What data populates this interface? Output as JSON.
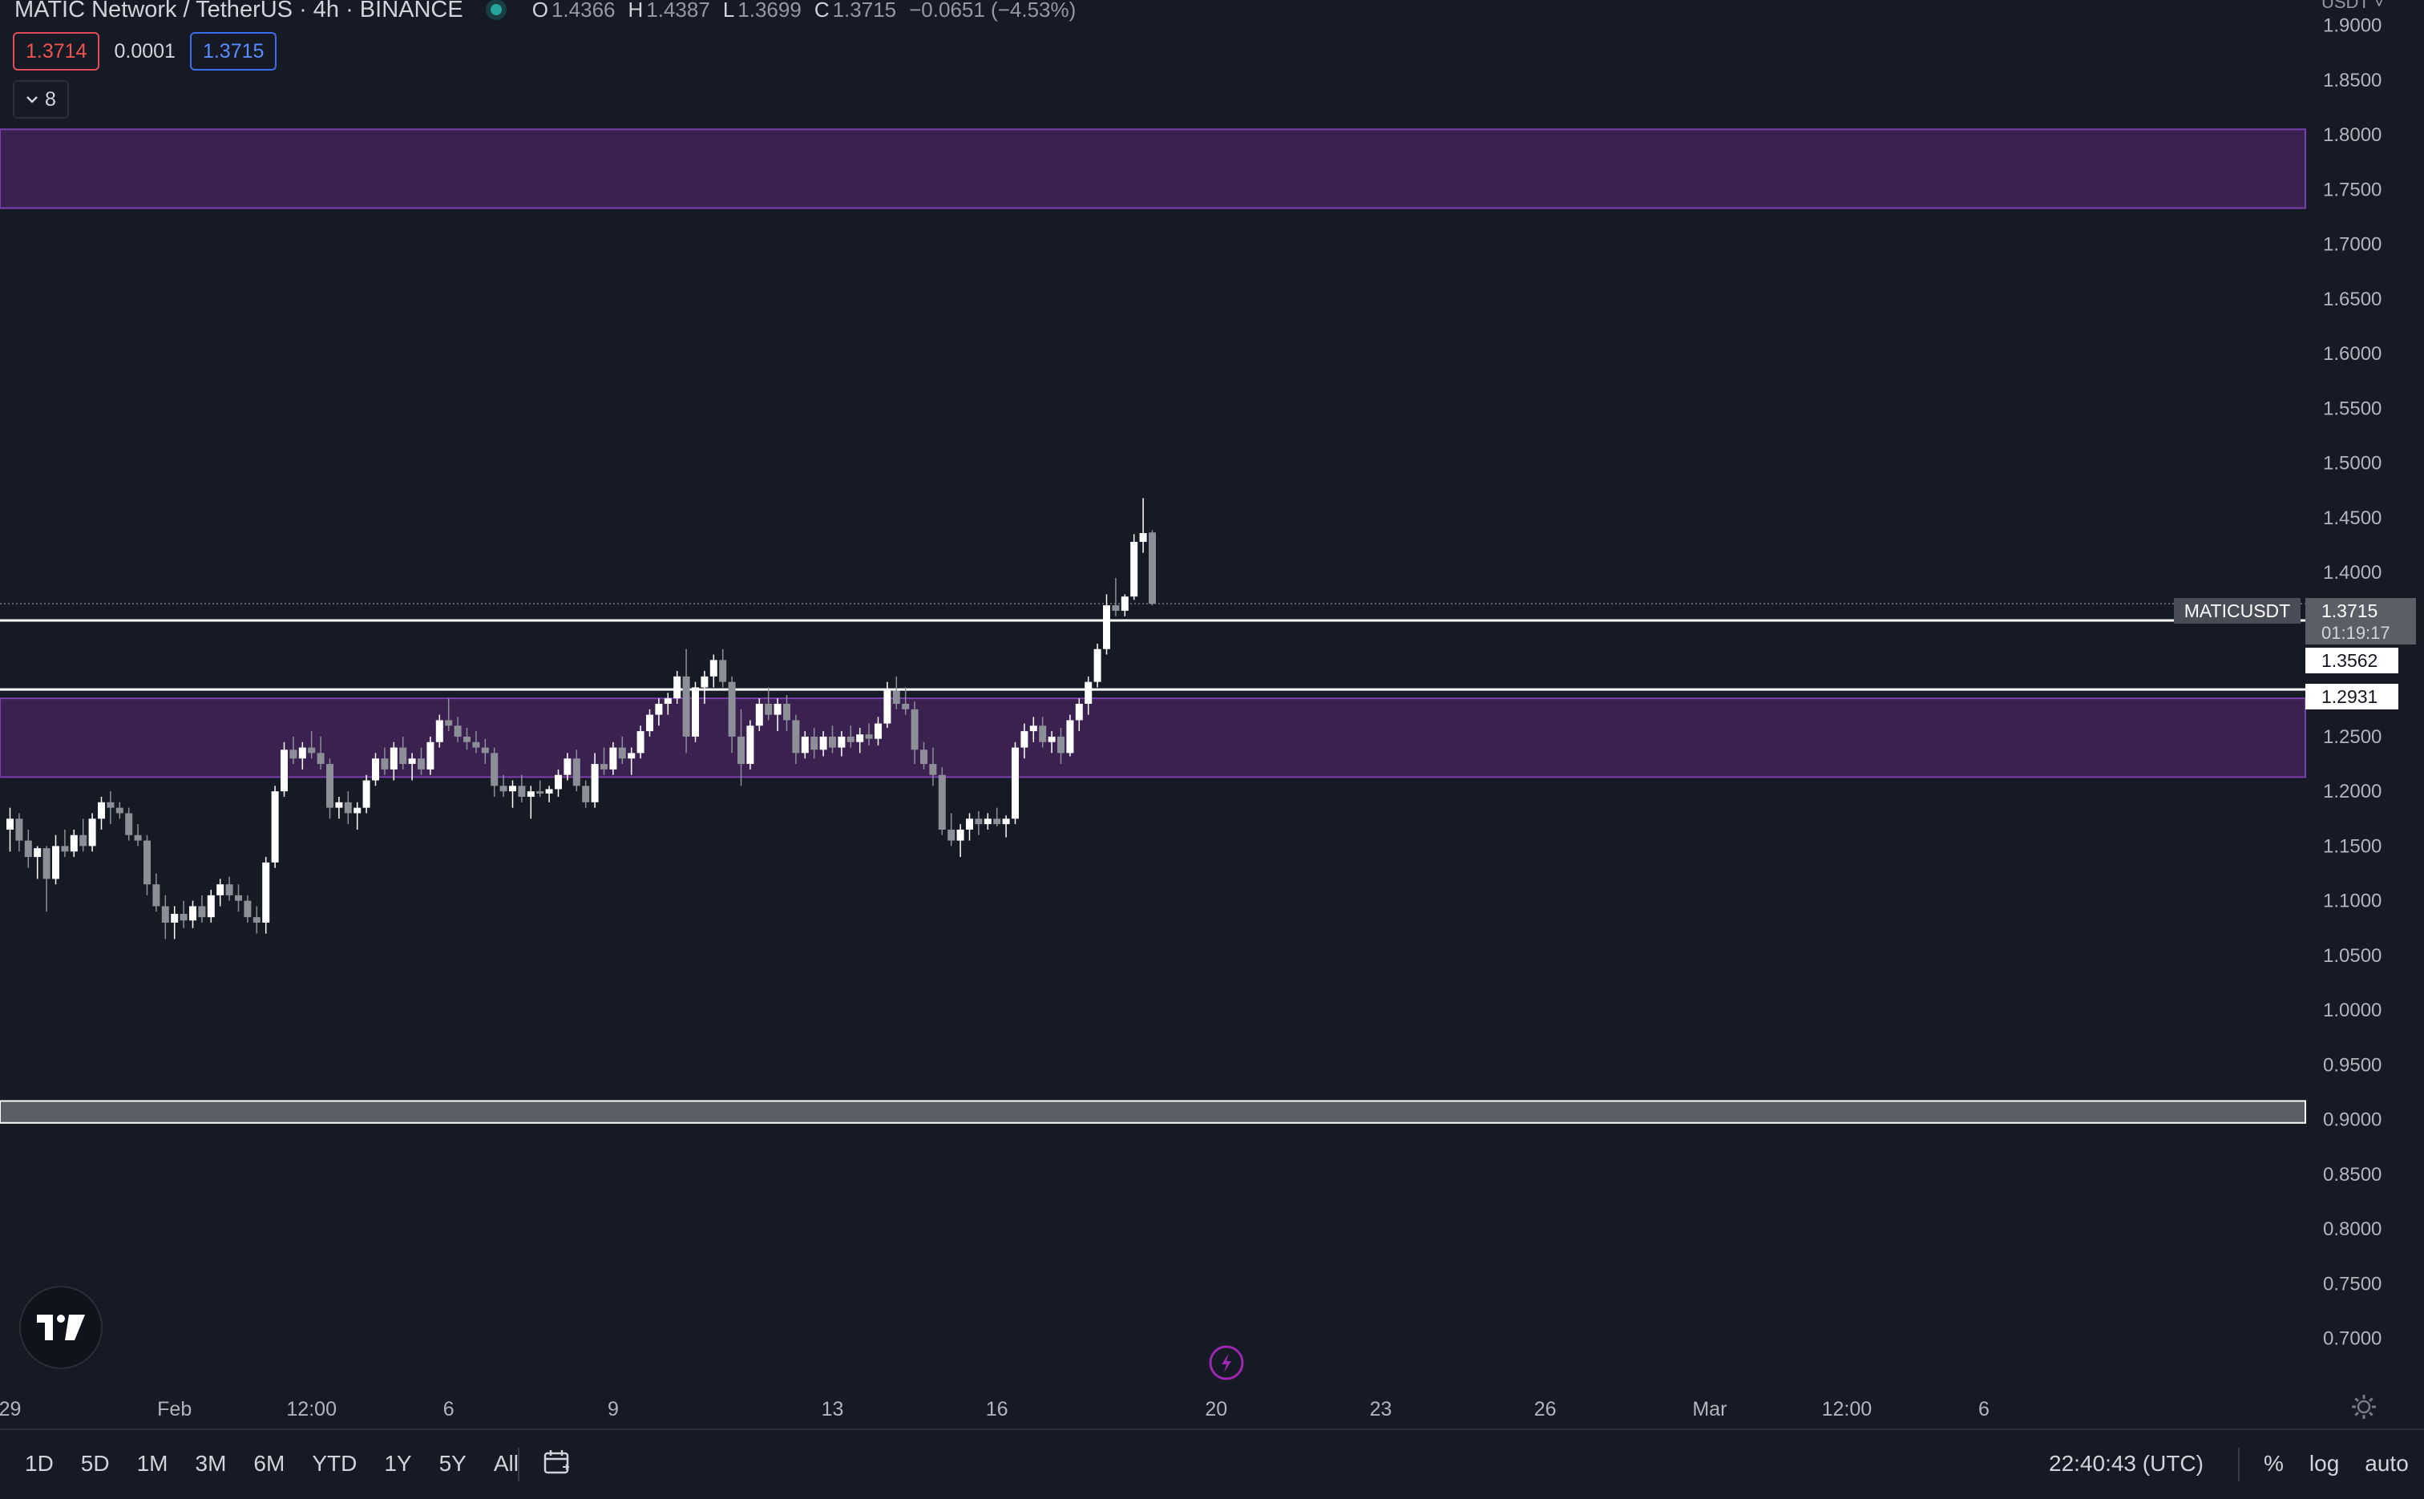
{
  "header": {
    "symbol_title": "MATIC Network / TetherUS · 4h · BINANCE",
    "o_label": "O",
    "o_value": "1.4366",
    "h_label": "H",
    "h_value": "1.4387",
    "l_label": "L",
    "l_value": "1.3699",
    "c_label": "C",
    "c_value": "1.3715",
    "change": "−0.0651 (−4.53%)"
  },
  "quote": {
    "sell": "1.3714",
    "spread": "0.0001",
    "buy": "1.3715"
  },
  "indicators_toggle": "8",
  "currency_label": "USDT",
  "price_labels": {
    "symbol_tag": "MATICUSDT",
    "last_price": "1.3715",
    "countdown": "01:19:17",
    "line_1": "1.3562",
    "line_2": "1.2931"
  },
  "bottom_bar": {
    "ranges": [
      "1D",
      "5D",
      "1M",
      "3M",
      "6M",
      "YTD",
      "1Y",
      "5Y",
      "All"
    ],
    "clock": "22:40:43 (UTC)",
    "percent": "%",
    "log": "log",
    "auto": "auto"
  },
  "colors": {
    "background": "#161a25",
    "candle_up": "#ffffff",
    "candle_down": "#8c8f98",
    "zone_fill": "#3a2150",
    "zone_border": "#7b3fb0",
    "grey_zone": "#5b5e66"
  },
  "chart_data": {
    "type": "candlestick",
    "symbol": "MATICUSDT",
    "timeframe": "4h",
    "y_ticks": [
      "1.9000",
      "1.8500",
      "1.8000",
      "1.7500",
      "1.7000",
      "1.6500",
      "1.6000",
      "1.5500",
      "1.5000",
      "1.4500",
      "1.4000",
      "1.2500",
      "1.2000",
      "1.1500",
      "1.1000",
      "1.0500",
      "1.0000",
      "0.9500",
      "0.9000",
      "0.8500",
      "0.8000",
      "0.7500",
      "0.7000"
    ],
    "ylim": [
      0.68,
      1.91
    ],
    "x_ticks": [
      {
        "label": "29",
        "bar": 0
      },
      {
        "label": "Feb",
        "bar": 18
      },
      {
        "label": "12:00",
        "bar": 33
      },
      {
        "label": "6",
        "bar": 48
      },
      {
        "label": "9",
        "bar": 66
      },
      {
        "label": "13",
        "bar": 90
      },
      {
        "label": "16",
        "bar": 108
      },
      {
        "label": "20",
        "bar": 132
      },
      {
        "label": "23",
        "bar": 150
      },
      {
        "label": "26",
        "bar": 168
      },
      {
        "label": "Mar",
        "bar": 186
      },
      {
        "label": "12:00",
        "bar": 201
      },
      {
        "label": "6",
        "bar": 216
      }
    ],
    "zones": [
      {
        "top": 1.805,
        "bottom": 1.733,
        "style": "purple"
      },
      {
        "top": 1.285,
        "bottom": 1.213,
        "style": "purple"
      },
      {
        "top": 0.917,
        "bottom": 0.897,
        "style": "grey"
      }
    ],
    "horizontal_lines": [
      1.3562,
      1.2931
    ],
    "last_price": 1.3715,
    "candles": [
      {
        "o": 1.165,
        "h": 1.185,
        "l": 1.145,
        "c": 1.175
      },
      {
        "o": 1.175,
        "h": 1.18,
        "l": 1.145,
        "c": 1.155
      },
      {
        "o": 1.155,
        "h": 1.165,
        "l": 1.13,
        "c": 1.14
      },
      {
        "o": 1.14,
        "h": 1.15,
        "l": 1.12,
        "c": 1.148
      },
      {
        "o": 1.148,
        "h": 1.15,
        "l": 1.09,
        "c": 1.12
      },
      {
        "o": 1.12,
        "h": 1.16,
        "l": 1.115,
        "c": 1.15
      },
      {
        "o": 1.15,
        "h": 1.165,
        "l": 1.14,
        "c": 1.145
      },
      {
        "o": 1.145,
        "h": 1.165,
        "l": 1.14,
        "c": 1.16
      },
      {
        "o": 1.16,
        "h": 1.175,
        "l": 1.145,
        "c": 1.15
      },
      {
        "o": 1.15,
        "h": 1.18,
        "l": 1.145,
        "c": 1.175
      },
      {
        "o": 1.175,
        "h": 1.195,
        "l": 1.165,
        "c": 1.19
      },
      {
        "o": 1.19,
        "h": 1.2,
        "l": 1.17,
        "c": 1.185
      },
      {
        "o": 1.185,
        "h": 1.19,
        "l": 1.175,
        "c": 1.18
      },
      {
        "o": 1.18,
        "h": 1.185,
        "l": 1.155,
        "c": 1.16
      },
      {
        "o": 1.16,
        "h": 1.17,
        "l": 1.15,
        "c": 1.155
      },
      {
        "o": 1.155,
        "h": 1.16,
        "l": 1.105,
        "c": 1.115
      },
      {
        "o": 1.115,
        "h": 1.125,
        "l": 1.09,
        "c": 1.095
      },
      {
        "o": 1.095,
        "h": 1.105,
        "l": 1.065,
        "c": 1.08
      },
      {
        "o": 1.08,
        "h": 1.095,
        "l": 1.065,
        "c": 1.088
      },
      {
        "o": 1.088,
        "h": 1.1,
        "l": 1.075,
        "c": 1.082
      },
      {
        "o": 1.082,
        "h": 1.1,
        "l": 1.075,
        "c": 1.095
      },
      {
        "o": 1.095,
        "h": 1.105,
        "l": 1.08,
        "c": 1.085
      },
      {
        "o": 1.085,
        "h": 1.11,
        "l": 1.08,
        "c": 1.105
      },
      {
        "o": 1.105,
        "h": 1.12,
        "l": 1.095,
        "c": 1.115
      },
      {
        "o": 1.115,
        "h": 1.122,
        "l": 1.1,
        "c": 1.105
      },
      {
        "o": 1.105,
        "h": 1.115,
        "l": 1.09,
        "c": 1.1
      },
      {
        "o": 1.1,
        "h": 1.105,
        "l": 1.08,
        "c": 1.085
      },
      {
        "o": 1.085,
        "h": 1.095,
        "l": 1.07,
        "c": 1.08
      },
      {
        "o": 1.08,
        "h": 1.14,
        "l": 1.07,
        "c": 1.135
      },
      {
        "o": 1.135,
        "h": 1.205,
        "l": 1.13,
        "c": 1.2
      },
      {
        "o": 1.2,
        "h": 1.245,
        "l": 1.195,
        "c": 1.238
      },
      {
        "o": 1.238,
        "h": 1.25,
        "l": 1.225,
        "c": 1.23
      },
      {
        "o": 1.23,
        "h": 1.245,
        "l": 1.22,
        "c": 1.24
      },
      {
        "o": 1.24,
        "h": 1.255,
        "l": 1.23,
        "c": 1.235
      },
      {
        "o": 1.235,
        "h": 1.25,
        "l": 1.22,
        "c": 1.225
      },
      {
        "o": 1.225,
        "h": 1.23,
        "l": 1.175,
        "c": 1.185
      },
      {
        "o": 1.185,
        "h": 1.195,
        "l": 1.175,
        "c": 1.19
      },
      {
        "o": 1.19,
        "h": 1.2,
        "l": 1.17,
        "c": 1.18
      },
      {
        "o": 1.18,
        "h": 1.19,
        "l": 1.165,
        "c": 1.185
      },
      {
        "o": 1.185,
        "h": 1.215,
        "l": 1.18,
        "c": 1.21
      },
      {
        "o": 1.21,
        "h": 1.235,
        "l": 1.205,
        "c": 1.23
      },
      {
        "o": 1.23,
        "h": 1.24,
        "l": 1.215,
        "c": 1.22
      },
      {
        "o": 1.22,
        "h": 1.245,
        "l": 1.21,
        "c": 1.24
      },
      {
        "o": 1.24,
        "h": 1.25,
        "l": 1.22,
        "c": 1.225
      },
      {
        "o": 1.225,
        "h": 1.235,
        "l": 1.21,
        "c": 1.23
      },
      {
        "o": 1.23,
        "h": 1.24,
        "l": 1.215,
        "c": 1.22
      },
      {
        "o": 1.22,
        "h": 1.25,
        "l": 1.215,
        "c": 1.245
      },
      {
        "o": 1.245,
        "h": 1.27,
        "l": 1.24,
        "c": 1.265
      },
      {
        "o": 1.265,
        "h": 1.285,
        "l": 1.255,
        "c": 1.26
      },
      {
        "o": 1.26,
        "h": 1.268,
        "l": 1.245,
        "c": 1.25
      },
      {
        "o": 1.25,
        "h": 1.258,
        "l": 1.238,
        "c": 1.245
      },
      {
        "o": 1.245,
        "h": 1.255,
        "l": 1.235,
        "c": 1.24
      },
      {
        "o": 1.24,
        "h": 1.248,
        "l": 1.225,
        "c": 1.235
      },
      {
        "o": 1.235,
        "h": 1.24,
        "l": 1.195,
        "c": 1.205
      },
      {
        "o": 1.205,
        "h": 1.215,
        "l": 1.195,
        "c": 1.2
      },
      {
        "o": 1.2,
        "h": 1.21,
        "l": 1.185,
        "c": 1.205
      },
      {
        "o": 1.205,
        "h": 1.215,
        "l": 1.19,
        "c": 1.195
      },
      {
        "o": 1.195,
        "h": 1.205,
        "l": 1.175,
        "c": 1.2
      },
      {
        "o": 1.2,
        "h": 1.21,
        "l": 1.195,
        "c": 1.198
      },
      {
        "o": 1.198,
        "h": 1.205,
        "l": 1.19,
        "c": 1.202
      },
      {
        "o": 1.202,
        "h": 1.22,
        "l": 1.195,
        "c": 1.215
      },
      {
        "o": 1.215,
        "h": 1.235,
        "l": 1.21,
        "c": 1.23
      },
      {
        "o": 1.23,
        "h": 1.238,
        "l": 1.2,
        "c": 1.205
      },
      {
        "o": 1.205,
        "h": 1.21,
        "l": 1.185,
        "c": 1.19
      },
      {
        "o": 1.19,
        "h": 1.235,
        "l": 1.185,
        "c": 1.225
      },
      {
        "o": 1.225,
        "h": 1.24,
        "l": 1.215,
        "c": 1.22
      },
      {
        "o": 1.22,
        "h": 1.245,
        "l": 1.215,
        "c": 1.24
      },
      {
        "o": 1.24,
        "h": 1.25,
        "l": 1.225,
        "c": 1.23
      },
      {
        "o": 1.23,
        "h": 1.24,
        "l": 1.215,
        "c": 1.235
      },
      {
        "o": 1.235,
        "h": 1.26,
        "l": 1.23,
        "c": 1.255
      },
      {
        "o": 1.255,
        "h": 1.275,
        "l": 1.25,
        "c": 1.27
      },
      {
        "o": 1.27,
        "h": 1.285,
        "l": 1.26,
        "c": 1.28
      },
      {
        "o": 1.28,
        "h": 1.29,
        "l": 1.27,
        "c": 1.285
      },
      {
        "o": 1.285,
        "h": 1.31,
        "l": 1.28,
        "c": 1.305
      },
      {
        "o": 1.305,
        "h": 1.33,
        "l": 1.235,
        "c": 1.25
      },
      {
        "o": 1.25,
        "h": 1.3,
        "l": 1.245,
        "c": 1.295
      },
      {
        "o": 1.295,
        "h": 1.31,
        "l": 1.28,
        "c": 1.305
      },
      {
        "o": 1.305,
        "h": 1.325,
        "l": 1.295,
        "c": 1.32
      },
      {
        "o": 1.32,
        "h": 1.33,
        "l": 1.295,
        "c": 1.3
      },
      {
        "o": 1.3,
        "h": 1.305,
        "l": 1.235,
        "c": 1.25
      },
      {
        "o": 1.25,
        "h": 1.275,
        "l": 1.205,
        "c": 1.225
      },
      {
        "o": 1.225,
        "h": 1.265,
        "l": 1.22,
        "c": 1.26
      },
      {
        "o": 1.26,
        "h": 1.285,
        "l": 1.255,
        "c": 1.28
      },
      {
        "o": 1.28,
        "h": 1.295,
        "l": 1.265,
        "c": 1.27
      },
      {
        "o": 1.27,
        "h": 1.285,
        "l": 1.255,
        "c": 1.28
      },
      {
        "o": 1.28,
        "h": 1.288,
        "l": 1.255,
        "c": 1.265
      },
      {
        "o": 1.265,
        "h": 1.27,
        "l": 1.225,
        "c": 1.235
      },
      {
        "o": 1.235,
        "h": 1.255,
        "l": 1.23,
        "c": 1.25
      },
      {
        "o": 1.25,
        "h": 1.258,
        "l": 1.23,
        "c": 1.238
      },
      {
        "o": 1.238,
        "h": 1.255,
        "l": 1.232,
        "c": 1.25
      },
      {
        "o": 1.25,
        "h": 1.26,
        "l": 1.235,
        "c": 1.24
      },
      {
        "o": 1.24,
        "h": 1.255,
        "l": 1.232,
        "c": 1.25
      },
      {
        "o": 1.25,
        "h": 1.26,
        "l": 1.24,
        "c": 1.245
      },
      {
        "o": 1.245,
        "h": 1.258,
        "l": 1.235,
        "c": 1.252
      },
      {
        "o": 1.252,
        "h": 1.262,
        "l": 1.242,
        "c": 1.248
      },
      {
        "o": 1.248,
        "h": 1.268,
        "l": 1.242,
        "c": 1.262
      },
      {
        "o": 1.262,
        "h": 1.3,
        "l": 1.258,
        "c": 1.292
      },
      {
        "o": 1.292,
        "h": 1.305,
        "l": 1.275,
        "c": 1.28
      },
      {
        "o": 1.28,
        "h": 1.295,
        "l": 1.27,
        "c": 1.275
      },
      {
        "o": 1.275,
        "h": 1.282,
        "l": 1.225,
        "c": 1.238
      },
      {
        "o": 1.238,
        "h": 1.245,
        "l": 1.22,
        "c": 1.225
      },
      {
        "o": 1.225,
        "h": 1.24,
        "l": 1.205,
        "c": 1.215
      },
      {
        "o": 1.215,
        "h": 1.222,
        "l": 1.16,
        "c": 1.165
      },
      {
        "o": 1.165,
        "h": 1.18,
        "l": 1.15,
        "c": 1.155
      },
      {
        "o": 1.155,
        "h": 1.17,
        "l": 1.14,
        "c": 1.165
      },
      {
        "o": 1.165,
        "h": 1.18,
        "l": 1.155,
        "c": 1.175
      },
      {
        "o": 1.175,
        "h": 1.182,
        "l": 1.16,
        "c": 1.17
      },
      {
        "o": 1.17,
        "h": 1.18,
        "l": 1.165,
        "c": 1.175
      },
      {
        "o": 1.175,
        "h": 1.185,
        "l": 1.168,
        "c": 1.17
      },
      {
        "o": 1.17,
        "h": 1.178,
        "l": 1.158,
        "c": 1.175
      },
      {
        "o": 1.175,
        "h": 1.245,
        "l": 1.17,
        "c": 1.24
      },
      {
        "o": 1.24,
        "h": 1.262,
        "l": 1.23,
        "c": 1.255
      },
      {
        "o": 1.255,
        "h": 1.268,
        "l": 1.245,
        "c": 1.26
      },
      {
        "o": 1.26,
        "h": 1.268,
        "l": 1.24,
        "c": 1.245
      },
      {
        "o": 1.245,
        "h": 1.255,
        "l": 1.235,
        "c": 1.25
      },
      {
        "o": 1.25,
        "h": 1.258,
        "l": 1.225,
        "c": 1.235
      },
      {
        "o": 1.235,
        "h": 1.27,
        "l": 1.232,
        "c": 1.265
      },
      {
        "o": 1.265,
        "h": 1.285,
        "l": 1.255,
        "c": 1.28
      },
      {
        "o": 1.28,
        "h": 1.305,
        "l": 1.27,
        "c": 1.3
      },
      {
        "o": 1.3,
        "h": 1.335,
        "l": 1.295,
        "c": 1.33
      },
      {
        "o": 1.33,
        "h": 1.38,
        "l": 1.325,
        "c": 1.37
      },
      {
        "o": 1.37,
        "h": 1.395,
        "l": 1.36,
        "c": 1.365
      },
      {
        "o": 1.365,
        "h": 1.38,
        "l": 1.36,
        "c": 1.378
      },
      {
        "o": 1.378,
        "h": 1.435,
        "l": 1.375,
        "c": 1.428
      },
      {
        "o": 1.428,
        "h": 1.468,
        "l": 1.418,
        "c": 1.436
      },
      {
        "o": 1.4366,
        "h": 1.4387,
        "l": 1.3699,
        "c": 1.3715
      }
    ]
  }
}
